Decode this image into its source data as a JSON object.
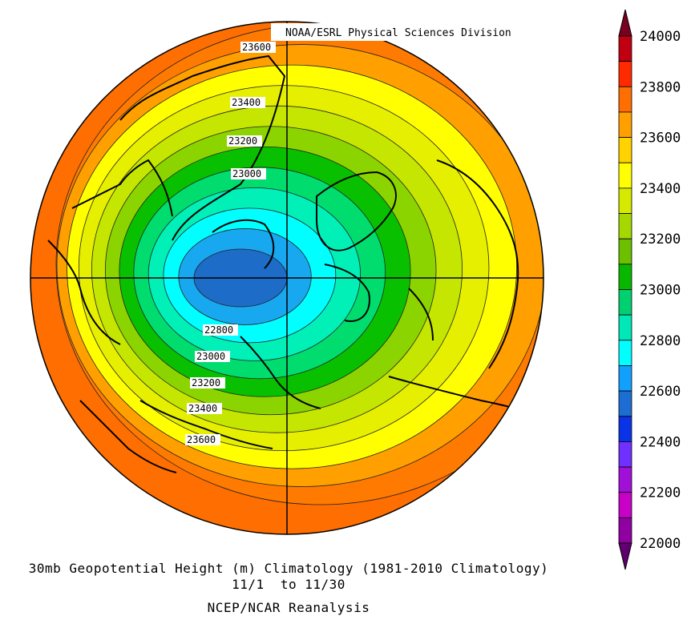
{
  "credit": "NOAA/ESRL Physical Sciences Division",
  "caption": {
    "line1": "30mb Geopotential Height (m) Climatology (1981-2010 Climatology)",
    "line2": "11/1  to 11/30",
    "line3": "NCEP/NCAR Reanalysis"
  },
  "colorbar": {
    "labels": [
      "24000",
      "23800",
      "23600",
      "23400",
      "23200",
      "23000",
      "22800",
      "22600",
      "22400",
      "22200",
      "22000"
    ],
    "colors": [
      "#7a0022",
      "#c00010",
      "#ff2a00",
      "#ff6e00",
      "#ffa000",
      "#ffd200",
      "#ffff00",
      "#d6ea00",
      "#a6d800",
      "#6cc000",
      "#08b800",
      "#00d070",
      "#00e8b8",
      "#00ffff",
      "#12a0ff",
      "#1c6ed2",
      "#0a32e6",
      "#7030ff",
      "#a010d8",
      "#c800c8",
      "#9000a0",
      "#600070"
    ]
  },
  "contour_labels": [
    "23600",
    "23400",
    "23200",
    "23000",
    "22800",
    "23000",
    "23200",
    "23400",
    "23600"
  ],
  "fields": {
    "bands": [
      {
        "level": 23700,
        "color": "#ff7a00"
      },
      {
        "level": 23600,
        "color": "#ffa000"
      },
      {
        "level": 23500,
        "color": "#ffff00"
      },
      {
        "level": 23400,
        "color": "#e6ef00"
      },
      {
        "level": 23300,
        "color": "#c4e600"
      },
      {
        "level": 23200,
        "color": "#8cd400"
      },
      {
        "level": 23100,
        "color": "#08c000"
      },
      {
        "level": 23000,
        "color": "#00dc6e"
      },
      {
        "level": 22900,
        "color": "#00f0b8"
      },
      {
        "level": 22800,
        "color": "#00ffff"
      },
      {
        "level": 22700,
        "color": "#18a8f0"
      },
      {
        "level": 22600,
        "color": "#1c6cc8"
      }
    ]
  }
}
